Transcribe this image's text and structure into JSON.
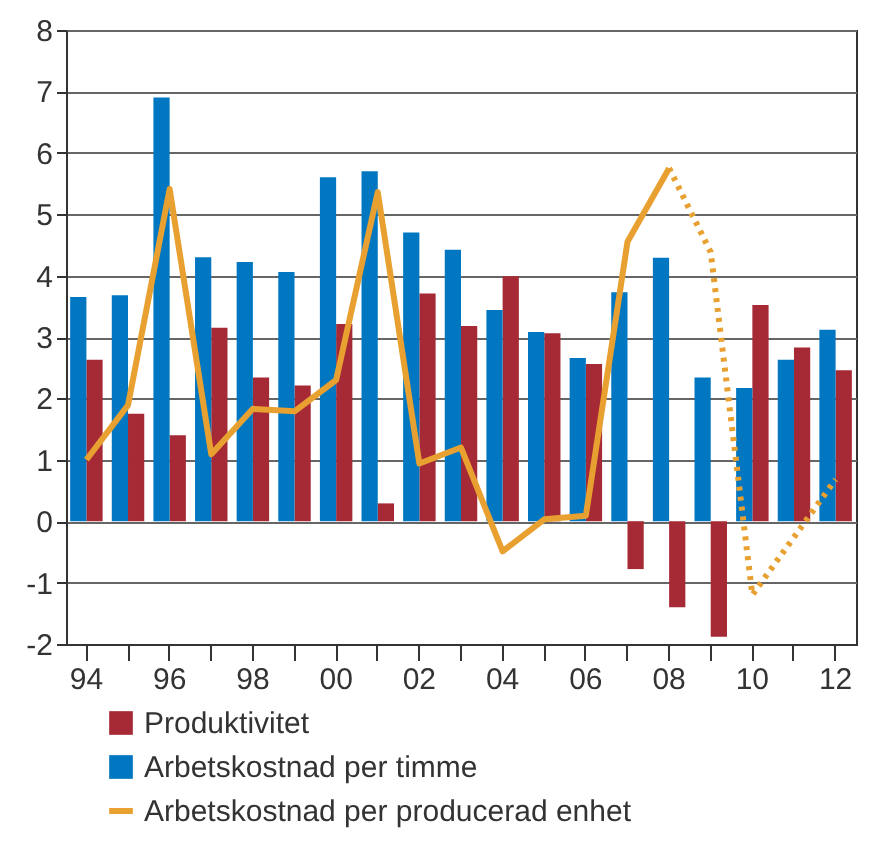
{
  "chart_data": {
    "type": "bar",
    "categories": [
      "94",
      null,
      "96",
      null,
      "98",
      null,
      "00",
      null,
      "02",
      null,
      "04",
      null,
      "06",
      null,
      "08",
      null,
      "10",
      null,
      "12"
    ],
    "series": [
      {
        "name": "Produktivitet",
        "color": "#a52a35",
        "values": [
          2.63,
          1.75,
          1.4,
          3.15,
          2.34,
          2.21,
          3.21,
          0.29,
          3.71,
          3.18,
          3.99,
          3.06,
          2.56,
          -0.78,
          -1.4,
          -1.88,
          3.52,
          2.83,
          2.46
        ]
      },
      {
        "name": "Arbetskostnad per timme",
        "color": "#0077c0",
        "values": [
          3.65,
          3.68,
          6.9,
          4.3,
          4.22,
          4.06,
          5.6,
          5.7,
          4.7,
          4.42,
          3.44,
          3.08,
          2.66,
          3.73,
          4.29,
          2.34,
          2.17,
          2.63,
          3.12
        ]
      },
      {
        "name": "Arbetskostnad per producerad enhet",
        "type": "line",
        "line_style": "solid",
        "color": "#e8a030",
        "values": [
          1.0,
          1.89,
          5.41,
          1.09,
          1.83,
          1.79,
          2.3,
          5.36,
          0.94,
          1.2,
          -0.49,
          0.03,
          0.09,
          4.55,
          5.75,
          null,
          null,
          null,
          null
        ]
      },
      {
        "type": "line",
        "line_style": "dotted",
        "color": "#e8a030",
        "values": [
          null,
          null,
          null,
          null,
          null,
          null,
          null,
          null,
          null,
          null,
          null,
          null,
          null,
          null,
          5.75,
          4.38,
          -1.2,
          -0.26,
          0.68
        ]
      }
    ],
    "ylim": [
      -2,
      8
    ],
    "yticks": [
      -2,
      -1,
      0,
      1,
      2,
      3,
      4,
      5,
      6,
      7,
      8
    ],
    "grid": "y",
    "legend": "bottom"
  }
}
